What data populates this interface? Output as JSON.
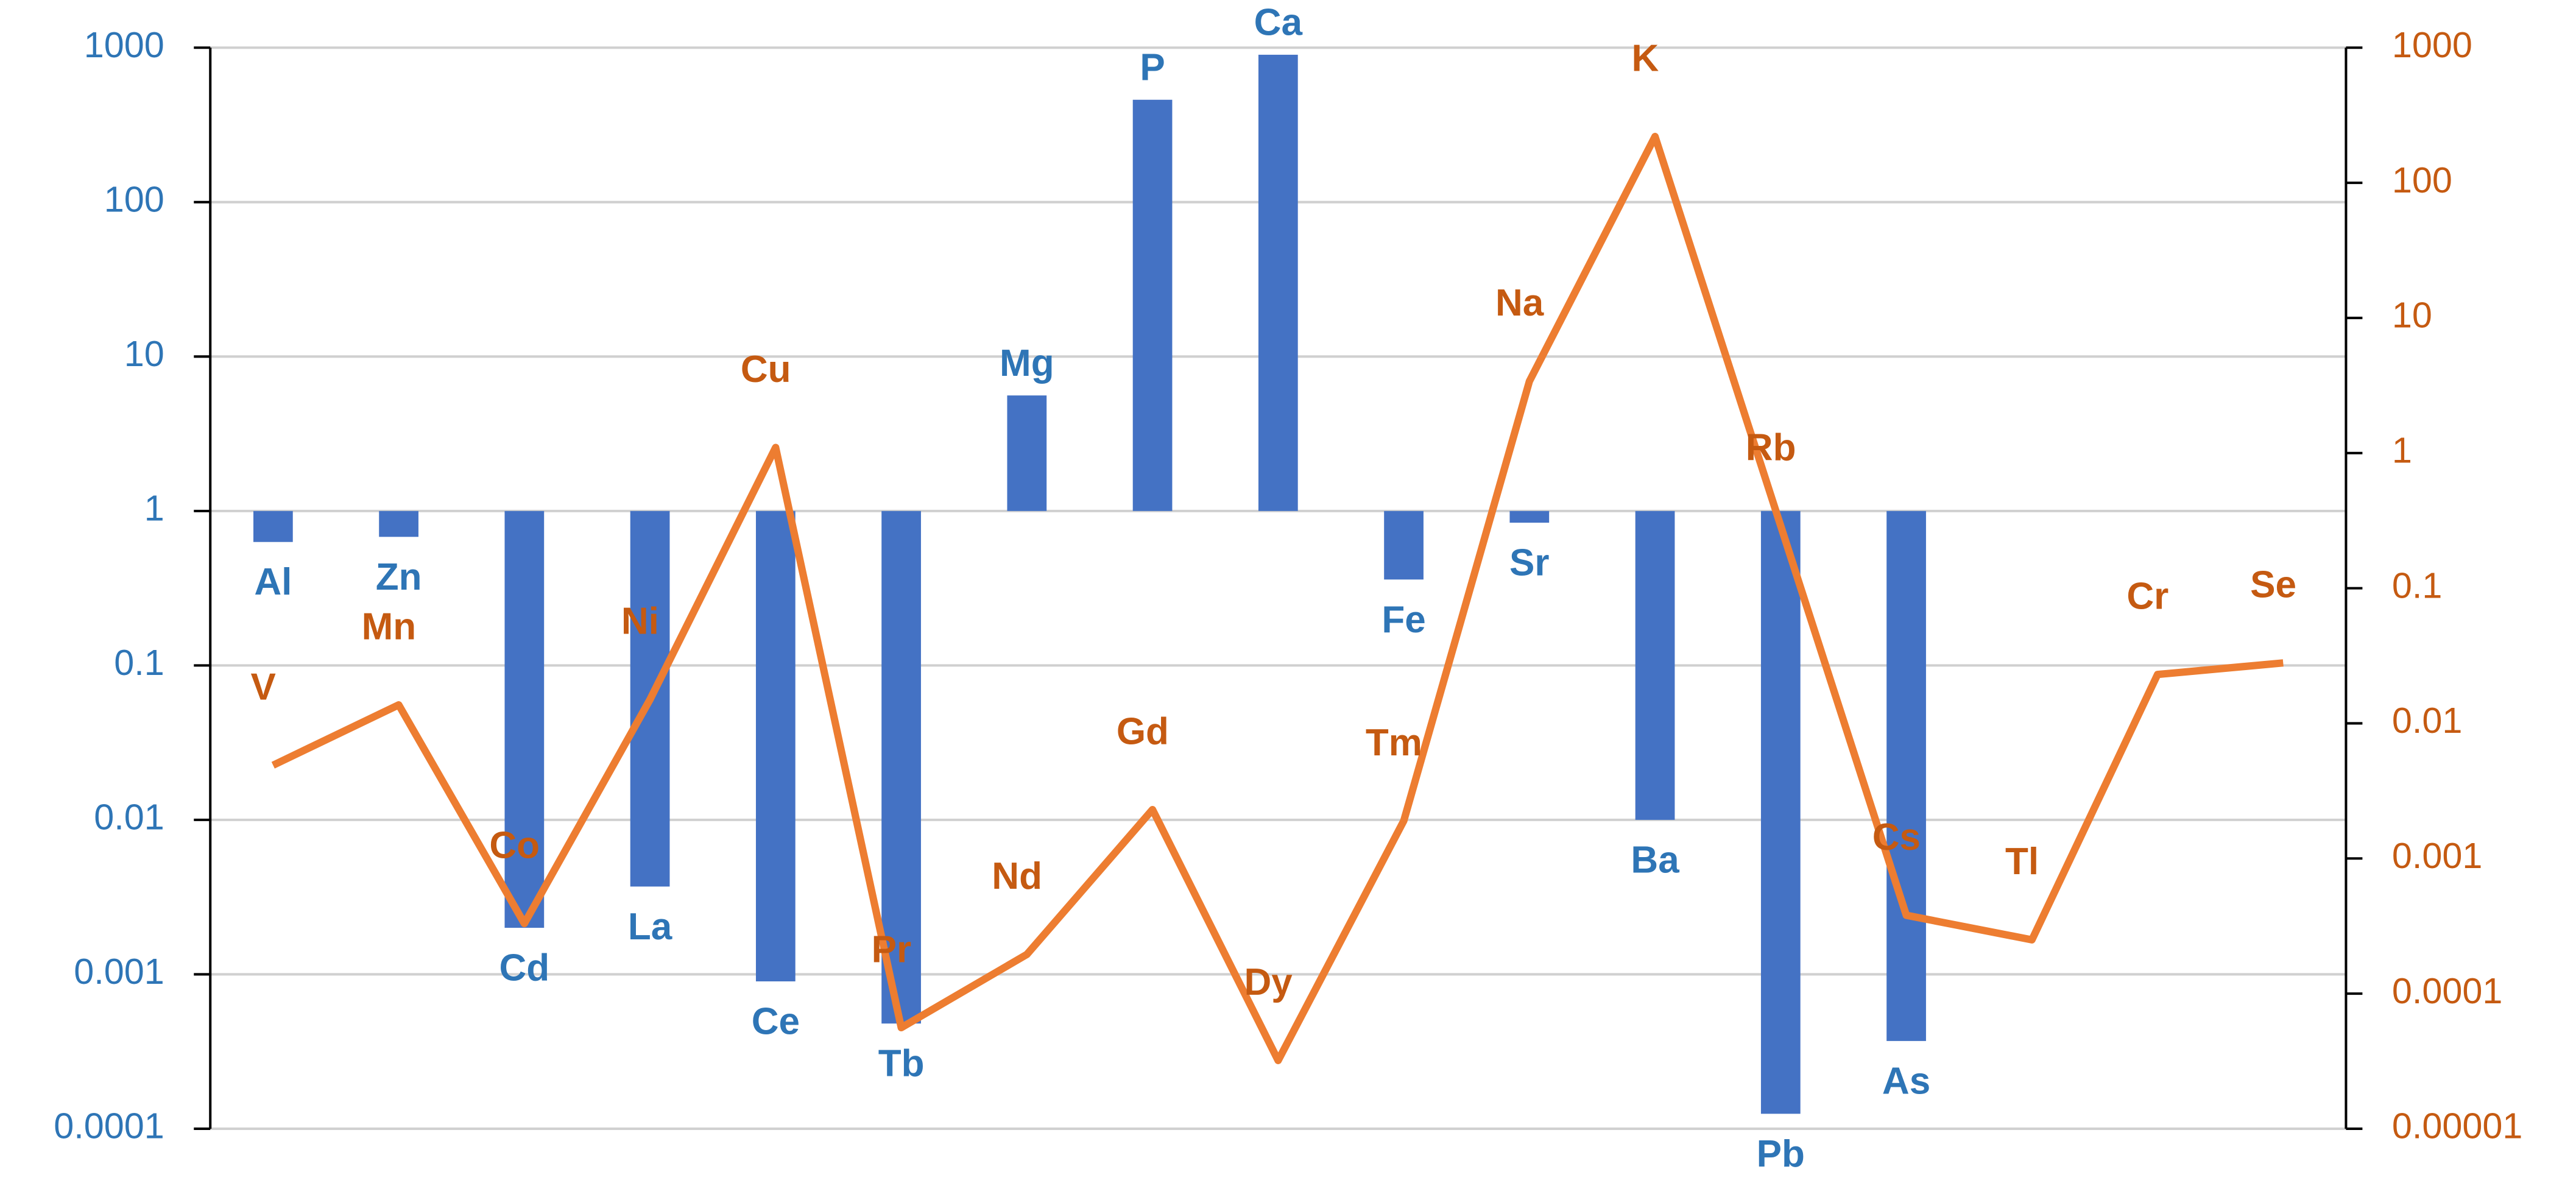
{
  "chart_data": {
    "type": "combo",
    "categories": [
      null,
      null,
      null,
      null,
      null,
      null,
      null,
      null,
      null,
      null,
      null,
      null,
      null,
      null,
      null,
      null,
      null
    ],
    "ylog": true,
    "ylim": [
      0.0001,
      1000
    ],
    "yticks": [
      0.0001,
      0.001,
      0.01,
      0.1,
      1,
      10,
      100,
      1000
    ],
    "y2lim": [
      1e-05,
      1000
    ],
    "y2ticks": [
      1e-05,
      0.0001,
      0.001,
      0.01,
      0.1,
      1,
      10,
      100,
      1000
    ],
    "grid": true,
    "series": [
      {
        "type": "bar",
        "color": "#4472c4",
        "label_color": "#2e75b6",
        "values": [
          0.63,
          0.68,
          0.002,
          0.0037,
          0.0009,
          0.00048,
          5.6,
          460,
          900,
          0.36,
          0.84,
          0.01,
          0.000125,
          0.00037,
          null,
          null,
          null
        ],
        "labels": [
          "Al",
          "Zn",
          "Cd",
          "La",
          "Ce",
          "Tb",
          "Mg",
          "P",
          "Ca",
          "Fe",
          "Sr",
          "Ba",
          "Pb",
          "As",
          null,
          null,
          null
        ]
      },
      {
        "type": "line",
        "axis": "y2",
        "color": "#ed7d31",
        "label_color": "#c55a11",
        "values": [
          0.0049,
          0.0137,
          0.00033,
          0.015,
          1.1,
          5.6e-05,
          0.000195,
          0.0023,
          3.2e-05,
          0.0019,
          3.4,
          220,
          0.29,
          0.00038,
          0.00025,
          0.023,
          0.028
        ],
        "labels": [
          "V",
          "Mn",
          "Co",
          "Ni",
          "Cu",
          "Pr",
          "Nd",
          "Gd",
          "Dy",
          "Tm",
          "Na",
          "K",
          "Rb",
          "Cs",
          "Tl",
          "Cr",
          "Se"
        ]
      }
    ]
  }
}
